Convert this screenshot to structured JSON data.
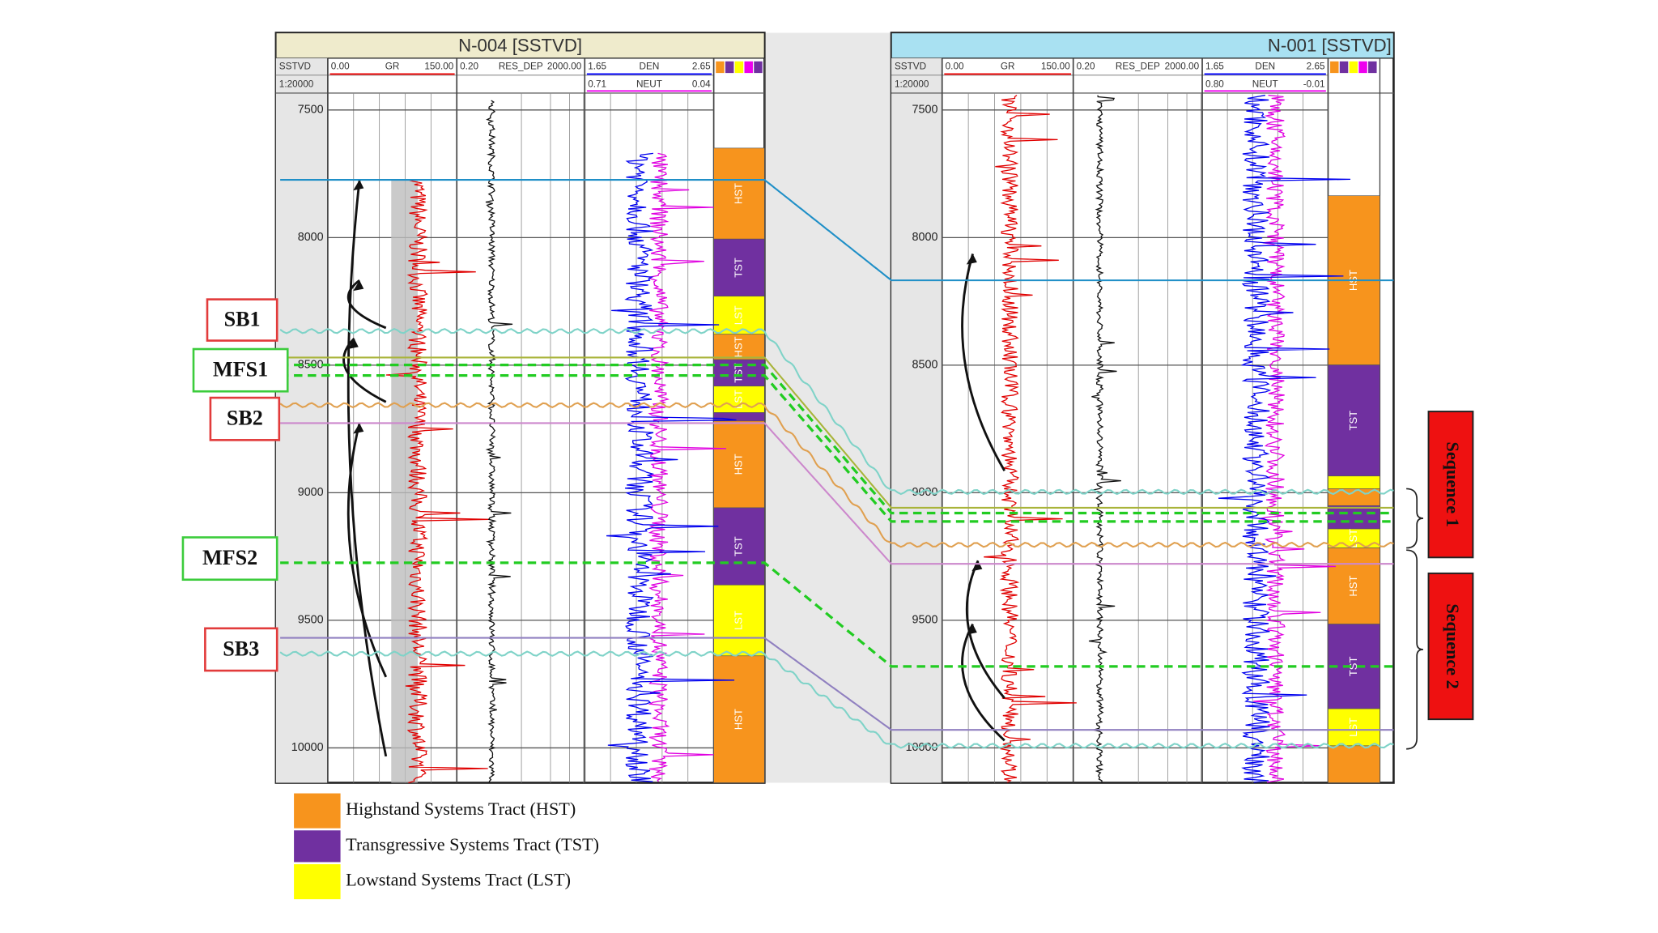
{
  "wells": [
    {
      "title": "N-004 [SSTVD]",
      "header_row1": [
        "SSTVD",
        "0.00",
        "GR",
        "150.00",
        "0.20",
        "RES_DEP",
        "2000.00",
        "1.65",
        "DEN",
        "2.65"
      ],
      "header_row2": [
        "1:20000",
        "0.71",
        "NEUT",
        "0.04"
      ],
      "depth_ticks": [
        7500,
        8000,
        8500,
        9000,
        9500,
        10000
      ],
      "tracts": [
        "HST",
        "TST",
        "LST",
        "HST",
        "TST",
        "LST",
        "HST",
        "TST",
        "LST",
        "HST"
      ]
    },
    {
      "title": "N-001 [SSTVD]",
      "header_row1": [
        "SSTVD",
        "0.00",
        "GR",
        "150.00",
        "0.20",
        "RES_DEP",
        "2000.00",
        "1.65",
        "DEN",
        "2.65"
      ],
      "header_row2": [
        "1:20000",
        "0.80",
        "NEUT",
        "-0.01"
      ],
      "depth_ticks": [
        7500,
        8000,
        8500,
        9000,
        9500,
        10000
      ],
      "tracts": [
        "HST",
        "TST",
        "LST",
        "HST",
        "TST",
        "LST"
      ]
    }
  ],
  "markers": [
    "SB1",
    "MFS1",
    "SB2",
    "MFS2",
    "SB3"
  ],
  "sequences": [
    "Sequence 1",
    "Sequence 2"
  ],
  "legend": [
    {
      "label": "Highstand Systems Tract (HST)",
      "color": "#f7941d"
    },
    {
      "label": "Transgressive Systems Tract (TST)",
      "color": "#7030a0"
    },
    {
      "label": "Lowstand Systems Tract (LST)",
      "color": "#ffff00"
    }
  ]
}
